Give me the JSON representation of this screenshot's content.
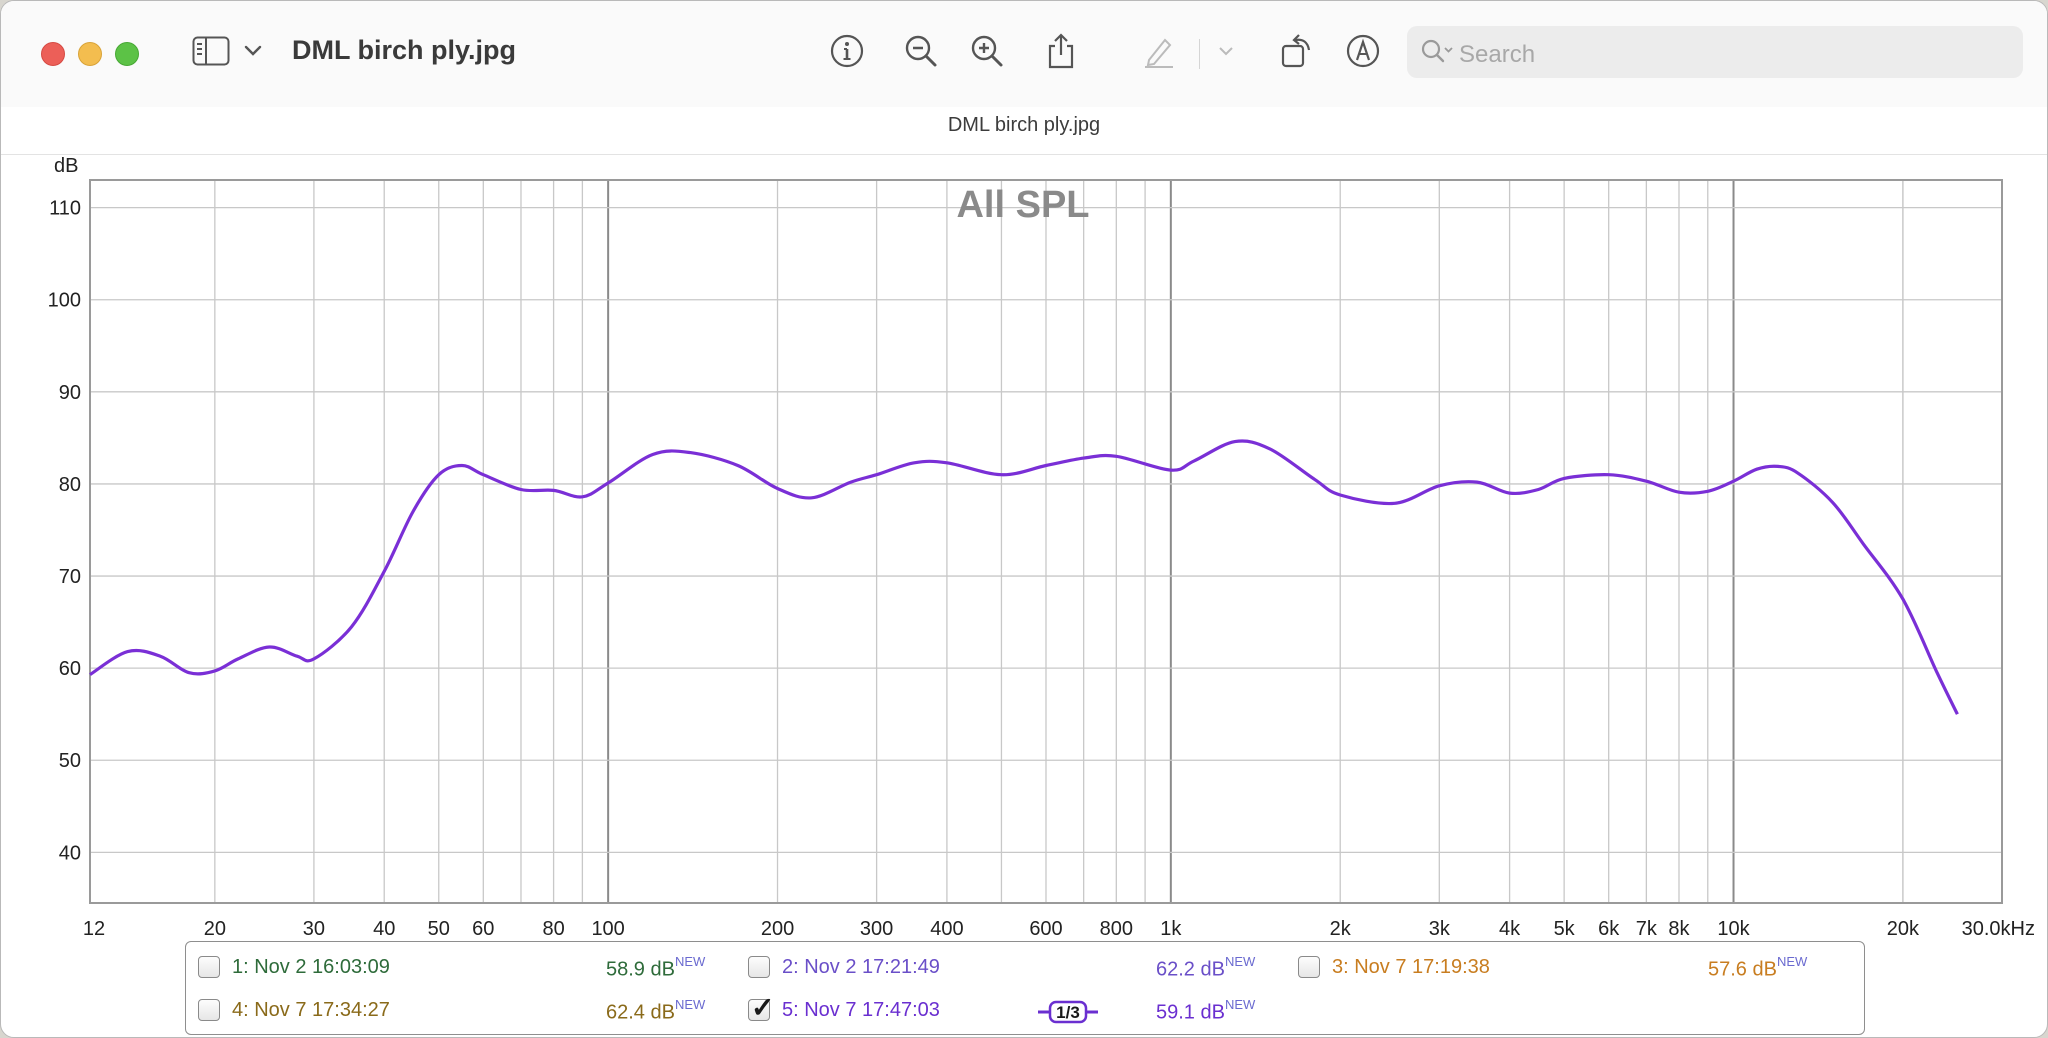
{
  "window": {
    "title": "DML birch ply.jpg",
    "subtitle": "DML birch ply.jpg",
    "search_placeholder": "Search"
  },
  "toolbar": {
    "icons": [
      "sidebar-icon",
      "chevron-down-icon",
      "info-icon",
      "zoom-out-icon",
      "zoom-in-icon",
      "share-icon",
      "markup-pen-icon",
      "chevron-down-icon",
      "rotate-icon",
      "annotate-icon",
      "search-icon"
    ]
  },
  "chart_data": {
    "type": "line",
    "title": "All SPL",
    "ylabel": "dB",
    "xlabel": "",
    "xscale": "log",
    "xlim": [
      12,
      30000
    ],
    "ylim": [
      34.5,
      113
    ],
    "xticks": [
      {
        "v": 12,
        "label": "12"
      },
      {
        "v": 20,
        "label": "20"
      },
      {
        "v": 30,
        "label": "30"
      },
      {
        "v": 40,
        "label": "40"
      },
      {
        "v": 50,
        "label": "50"
      },
      {
        "v": 60,
        "label": "60"
      },
      {
        "v": 80,
        "label": "80"
      },
      {
        "v": 100,
        "label": "100"
      },
      {
        "v": 200,
        "label": "200"
      },
      {
        "v": 300,
        "label": "300"
      },
      {
        "v": 400,
        "label": "400"
      },
      {
        "v": 600,
        "label": "600"
      },
      {
        "v": 800,
        "label": "800"
      },
      {
        "v": 1000,
        "label": "1k"
      },
      {
        "v": 2000,
        "label": "2k"
      },
      {
        "v": 3000,
        "label": "3k"
      },
      {
        "v": 4000,
        "label": "4k"
      },
      {
        "v": 5000,
        "label": "5k"
      },
      {
        "v": 6000,
        "label": "6k"
      },
      {
        "v": 7000,
        "label": "7k"
      },
      {
        "v": 8000,
        "label": "8k"
      },
      {
        "v": 10000,
        "label": "10k"
      },
      {
        "v": 20000,
        "label": "20k"
      },
      {
        "v": 30000,
        "label": "30.0kHz"
      }
    ],
    "yticks": [
      40,
      50,
      60,
      70,
      80,
      90,
      100,
      110
    ],
    "grid": true,
    "series": [
      {
        "color": "#7a2fd6",
        "x": [
          12,
          14,
          16,
          18,
          20,
          22,
          25,
          28,
          30,
          35,
          40,
          45,
          50,
          55,
          60,
          70,
          80,
          90,
          100,
          120,
          140,
          170,
          200,
          230,
          270,
          300,
          350,
          400,
          500,
          600,
          700,
          800,
          1000,
          1100,
          1300,
          1500,
          1800,
          2000,
          2500,
          3000,
          3500,
          4000,
          4500,
          5000,
          6000,
          7000,
          8000,
          9000,
          10000,
          11000,
          12000,
          13000,
          15000,
          17000,
          20000,
          23000,
          25000
        ],
        "y": [
          59.3,
          61.8,
          61.3,
          59.5,
          59.7,
          61.0,
          62.3,
          61.3,
          61.0,
          64.5,
          70.5,
          77.0,
          81.0,
          82.0,
          81.0,
          79.4,
          79.3,
          78.6,
          80.1,
          83.2,
          83.4,
          82.0,
          79.5,
          78.5,
          80.2,
          81.0,
          82.3,
          82.3,
          81.0,
          82.0,
          82.8,
          83.0,
          81.5,
          82.5,
          84.6,
          83.8,
          80.5,
          78.8,
          77.9,
          79.8,
          80.2,
          79.0,
          79.4,
          80.6,
          81.0,
          80.3,
          79.1,
          79.2,
          80.3,
          81.6,
          81.9,
          81.2,
          78.0,
          73.5,
          67.5,
          59.5,
          55.0
        ]
      }
    ]
  },
  "legend": {
    "items": [
      {
        "label": "1: Nov 2 16:03:09",
        "value": "58.9 dB",
        "badge": "NEW",
        "color": "#2e6b3a",
        "checked": false
      },
      {
        "label": "2: Nov 2 17:21:49",
        "value": "62.2 dB",
        "badge": "NEW",
        "color": "#6a4fc8",
        "checked": false
      },
      {
        "label": "3: Nov 7 17:19:38",
        "value": "57.6 dB",
        "badge": "NEW",
        "color": "#c87d20",
        "checked": false
      },
      {
        "label": "4: Nov 7 17:34:27",
        "value": "62.4 dB",
        "badge": "NEW",
        "color": "#8a6a1a",
        "checked": false
      },
      {
        "label": "5: Nov 7 17:47:03",
        "value": "59.1 dB",
        "badge": "NEW",
        "color": "#6a2fd0",
        "checked": true
      }
    ],
    "smoothing_label": "1/3"
  }
}
